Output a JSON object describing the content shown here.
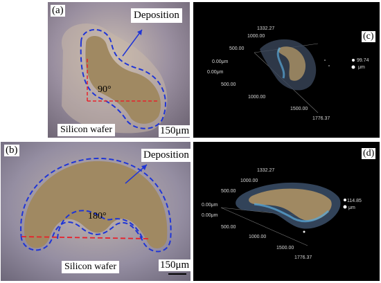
{
  "panels": {
    "a": {
      "letter": "(a)",
      "deposition": "Deposition",
      "angle": "90°",
      "substrate": "Silicon wafer",
      "scale": "150μm"
    },
    "b": {
      "letter": "(b)",
      "deposition": "Deposition",
      "angle": "180°",
      "substrate": "Silicon wafer",
      "scale": "150μm"
    },
    "c": {
      "letter": "(c)",
      "top": "1332.27",
      "y1000": "1000.00",
      "y500": "500.00",
      "origin1": "0.00μm",
      "origin2": "0.00μm",
      "x500": "500.00",
      "x1000": "1000.00",
      "x1500": "1500.00",
      "xmax": "1776.37",
      "zval": "99.74",
      "zunit": "μm"
    },
    "d": {
      "letter": "(d)",
      "top": "1332.27",
      "y1000": "1000.00",
      "y500": "500.00",
      "origin1": "0.00μm",
      "origin2": "0.00μm",
      "x500": "500.00",
      "x1000": "1000.00",
      "x1500": "1500.00",
      "xmax": "1776.37",
      "zval": "114.85",
      "zunit": "μm"
    }
  },
  "colors": {
    "dash_outline": "#1f35d6",
    "guide_line": "#e8202a",
    "arrow": "#1f35d6",
    "deposit": "#a08962"
  }
}
